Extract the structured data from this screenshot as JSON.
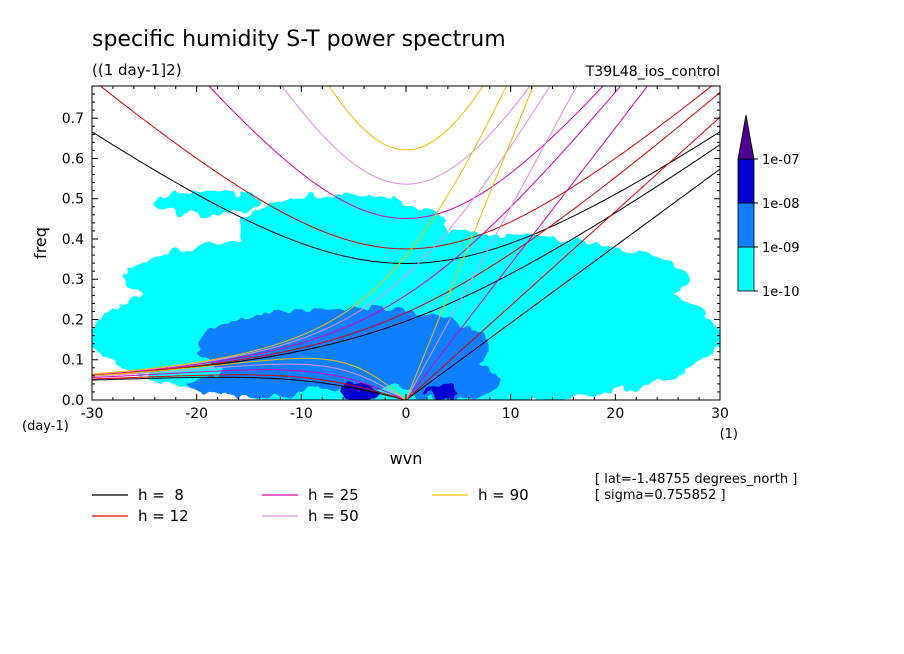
{
  "chart_data": {
    "type": "heatmap",
    "title": "specific humidity S-T power spectrum",
    "subtitle": "((1 day-1]2)",
    "run_label": "T39L48_ios_control",
    "xlabel": "wvn",
    "ylabel": "freq",
    "x_unit": "(1)",
    "y_unit": "(day-1)",
    "xlim": [
      -30,
      30
    ],
    "ylim": [
      0,
      0.78
    ],
    "x_ticks": [
      -30,
      -20,
      -10,
      0,
      10,
      20,
      30
    ],
    "x_tick_labels": [
      "-30",
      "-20",
      "-10",
      "0",
      "10",
      "20",
      "30"
    ],
    "y_ticks": [
      0,
      0.1,
      0.2,
      0.3,
      0.4,
      0.5,
      0.6,
      0.7
    ],
    "y_tick_labels": [
      "0.0",
      "0.1",
      "0.2",
      "0.3",
      "0.4",
      "0.5",
      "0.6",
      "0.7"
    ],
    "colorbar": {
      "levels": [
        "1e-10",
        "1e-09",
        "1e-08",
        "1e-07"
      ],
      "colors": [
        "#00ffff",
        "#0f7fff",
        "#0000d0",
        "#4b0090"
      ]
    },
    "contour_regions": [
      {
        "level_index": 0,
        "cx": 0,
        "cy": 0.16,
        "rx": 30,
        "ry": 0.18
      },
      {
        "level_index": 0,
        "cx": 0,
        "cy": 0.3,
        "rx": 27,
        "ry": 0.12
      },
      {
        "level_index": 0,
        "cx": -6,
        "cy": 0.42,
        "rx": 10,
        "ry": 0.09
      },
      {
        "level_index": 0,
        "cx": -19,
        "cy": 0.49,
        "rx": 5,
        "ry": 0.03
      },
      {
        "level_index": 0,
        "cx": 17,
        "cy": 0.12,
        "rx": 11,
        "ry": 0.1
      },
      {
        "level_index": 1,
        "cx": -6,
        "cy": 0.13,
        "rx": 14,
        "ry": 0.1
      },
      {
        "level_index": 1,
        "cx": 4,
        "cy": 0.05,
        "rx": 5,
        "ry": 0.05
      },
      {
        "level_index": 1,
        "cx": -15,
        "cy": 0.04,
        "rx": 6,
        "ry": 0.035
      },
      {
        "level_index": 2,
        "cx": -4.5,
        "cy": 0.02,
        "rx": 2,
        "ry": 0.02
      },
      {
        "level_index": 2,
        "cx": 3.5,
        "cy": 0.02,
        "rx": 1.5,
        "ry": 0.018
      }
    ],
    "series": [
      {
        "name": "h =  8",
        "h": 8,
        "color": "#000000"
      },
      {
        "name": "h = 12",
        "h": 12,
        "color": "#e00000"
      },
      {
        "name": "h = 25",
        "h": 25,
        "color": "#e000b0"
      },
      {
        "name": "h = 50",
        "h": 50,
        "color": "#e090e0"
      },
      {
        "name": "h = 90",
        "h": 90,
        "color": "#f0c000"
      }
    ],
    "legend_position": "bottom-left",
    "annotations": [
      "[ lat=-1.48755 degrees_north ]",
      "[ sigma=0.755852 ]"
    ]
  }
}
